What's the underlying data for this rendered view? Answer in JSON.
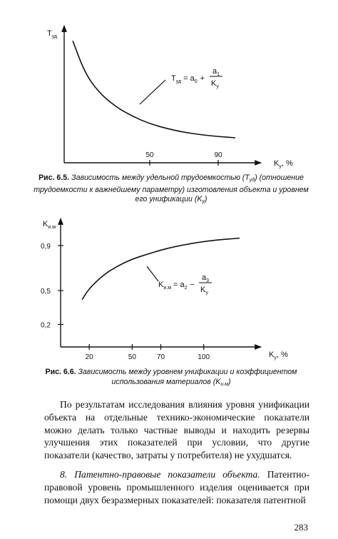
{
  "figure1": {
    "y_axis_label": "Т",
    "y_axis_sub": "уд",
    "x_axis_label": "K",
    "x_axis_sub": "у",
    "x_axis_unit": ", %",
    "x_ticks": [
      "50",
      "90"
    ],
    "formula_lhs": "Т",
    "formula_lhs_sub": "уд",
    "formula_mid": "= a",
    "formula_mid_sub": "0",
    "formula_plus": "+",
    "formula_num": "a",
    "formula_num_sub": "1",
    "formula_den": "K",
    "formula_den_sub": "у",
    "caption_label": "Рис. 6.5.",
    "caption_text_1": "Зависимость между удельной трудоемкостью (Т",
    "caption_sub_1": "уд",
    "caption_text_2": ") (отношение трудоемкости к важнейшему параметру) изготовления объекта и уровнем его унификации (K",
    "caption_sub_2": "у",
    "caption_text_3": ")"
  },
  "figure2": {
    "y_axis_label": "K",
    "y_axis_sub": "и.м",
    "x_axis_label": "K",
    "x_axis_sub": "у",
    "x_axis_unit": ", %",
    "y_ticks": [
      "0,9",
      "0,5",
      "0,2"
    ],
    "x_ticks": [
      "20",
      "50",
      "70",
      "100"
    ],
    "formula_lhs": "K",
    "formula_lhs_sub": "и.м",
    "formula_mid": "= a",
    "formula_mid_sub": "2",
    "formula_minus": "−",
    "formula_num": "a",
    "formula_num_sub": "3",
    "formula_den": "K",
    "formula_den_sub": "у",
    "caption_label": "Рис. 6.6.",
    "caption_text_1": "Зависимость между уровнем унификации и коэффициентом использования материалов (K",
    "caption_sub_1": "и.м",
    "caption_text_2": ")"
  },
  "chart_data": [
    {
      "type": "line",
      "x_ticks": [
        50,
        90
      ],
      "series": [
        {
          "x": [
            5,
            12,
            20,
            30,
            40,
            50,
            60,
            70,
            80,
            90,
            100
          ],
          "y": [
            1.0,
            0.74,
            0.58,
            0.46,
            0.38,
            0.32,
            0.28,
            0.25,
            0.23,
            0.215,
            0.205
          ]
        }
      ]
    },
    {
      "type": "line",
      "y_ticks": [
        0.9,
        0.5,
        0.2
      ],
      "x_ticks": [
        20,
        50,
        70,
        100
      ],
      "series": [
        {
          "x": [
            15,
            20,
            30,
            40,
            50,
            60,
            70,
            80,
            90,
            100,
            110,
            120,
            125
          ],
          "y": [
            0.42,
            0.52,
            0.64,
            0.72,
            0.78,
            0.82,
            0.86,
            0.89,
            0.915,
            0.935,
            0.95,
            0.96,
            0.965
          ]
        }
      ]
    }
  ],
  "paragraph1": "По результатам исследования влияния уровня унификации объекта на отдельные технико-экономические показатели можно делать только частные выводы и находить резервы улучшения этих показателей при условии, что другие показатели (качество, затраты у потребителя) не ухудшатся.",
  "paragraph2_head": "8. Патентно-правовые показатели объекта.",
  "paragraph2_text": " Патентно-правовой уровень промышленного изделия оценивается при помощи двух безразмерных показателей: показателя патентной",
  "page_number": "283"
}
